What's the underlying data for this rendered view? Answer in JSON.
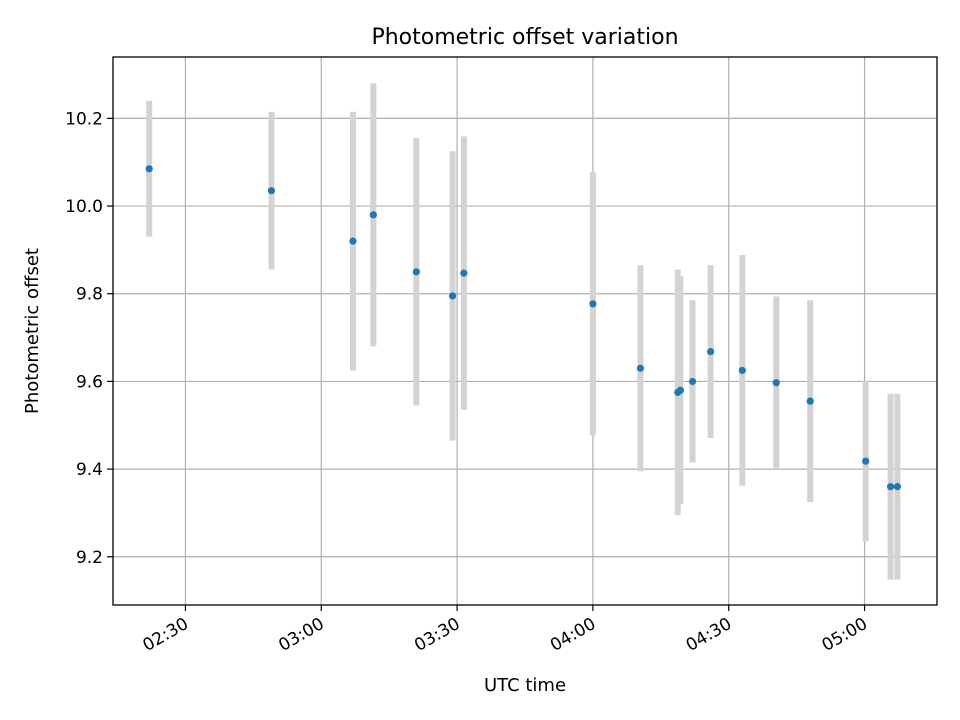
{
  "chart_data": {
    "type": "scatter",
    "title": "Photometric offset variation",
    "xlabel": "UTC time",
    "ylabel": "Photometric offset",
    "xlim": [
      "02:14",
      "05:16"
    ],
    "ylim": [
      9.09,
      10.34
    ],
    "x_ticks": [
      "02:30",
      "03:00",
      "03:30",
      "04:00",
      "04:30",
      "05:00"
    ],
    "y_ticks": [
      "9.2",
      "9.4",
      "9.6",
      "9.8",
      "10.0",
      "10.2"
    ],
    "grid": true,
    "colors": {
      "point": "#1f77b4",
      "errorbar": "#d3d3d3",
      "grid": "#b0b0b0"
    },
    "points": [
      {
        "x": "02:22",
        "y": 10.085,
        "err": 0.155
      },
      {
        "x": "02:49",
        "y": 10.035,
        "err": 0.18
      },
      {
        "x": "03:07",
        "y": 9.92,
        "err": 0.295
      },
      {
        "x": "03:11:30",
        "y": 9.98,
        "err": 0.3
      },
      {
        "x": "03:21",
        "y": 9.85,
        "err": 0.305
      },
      {
        "x": "03:29",
        "y": 9.795,
        "err": 0.33
      },
      {
        "x": "03:31:30",
        "y": 9.847,
        "err": 0.312
      },
      {
        "x": "04:00",
        "y": 9.777,
        "err": 0.3
      },
      {
        "x": "04:10:30",
        "y": 9.63,
        "err": 0.235
      },
      {
        "x": "04:18:45",
        "y": 9.575,
        "err": 0.28
      },
      {
        "x": "04:19:20",
        "y": 9.58,
        "err": 0.26
      },
      {
        "x": "04:22",
        "y": 9.6,
        "err": 0.185
      },
      {
        "x": "04:26",
        "y": 9.668,
        "err": 0.197
      },
      {
        "x": "04:33",
        "y": 9.625,
        "err": 0.263
      },
      {
        "x": "04:40:30",
        "y": 9.597,
        "err": 0.197
      },
      {
        "x": "04:48",
        "y": 9.555,
        "err": 0.23
      },
      {
        "x": "05:00:15",
        "y": 9.418,
        "err": 0.183
      },
      {
        "x": "05:05:45",
        "y": 9.36,
        "err": 0.212
      },
      {
        "x": "05:07:15",
        "y": 9.36,
        "err": 0.212
      }
    ]
  }
}
